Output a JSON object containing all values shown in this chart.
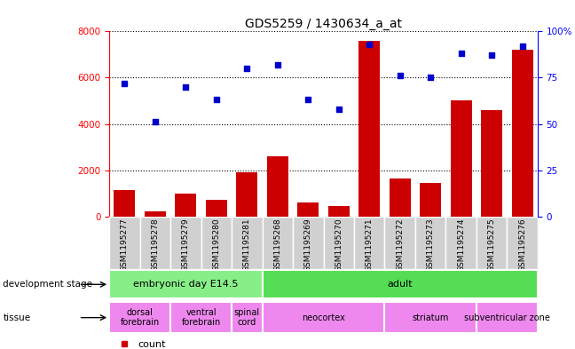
{
  "title": "GDS5259 / 1430634_a_at",
  "samples": [
    "GSM1195277",
    "GSM1195278",
    "GSM1195279",
    "GSM1195280",
    "GSM1195281",
    "GSM1195268",
    "GSM1195269",
    "GSM1195270",
    "GSM1195271",
    "GSM1195272",
    "GSM1195273",
    "GSM1195274",
    "GSM1195275",
    "GSM1195276"
  ],
  "counts": [
    1150,
    200,
    1000,
    700,
    1900,
    2600,
    600,
    450,
    7600,
    1650,
    1450,
    5000,
    4600,
    7200
  ],
  "percentiles": [
    72,
    51,
    70,
    63,
    80,
    82,
    63,
    58,
    93,
    76,
    75,
    88,
    87,
    92
  ],
  "bar_color": "#cc0000",
  "dot_color": "#0000cc",
  "ylim_left": [
    0,
    8000
  ],
  "ylim_right": [
    0,
    100
  ],
  "yticks_left": [
    0,
    2000,
    4000,
    6000,
    8000
  ],
  "yticks_right": [
    0,
    25,
    50,
    75,
    100
  ],
  "dev_stage_groups": [
    {
      "label": "embryonic day E14.5",
      "start": 0,
      "end": 5,
      "color": "#88ee88"
    },
    {
      "label": "adult",
      "start": 5,
      "end": 14,
      "color": "#55dd55"
    }
  ],
  "tissue_groups": [
    {
      "label": "dorsal\nforebrain",
      "start": 0,
      "end": 2,
      "color": "#ee88ee"
    },
    {
      "label": "ventral\nforebrain",
      "start": 2,
      "end": 4,
      "color": "#ee88ee"
    },
    {
      "label": "spinal\ncord",
      "start": 4,
      "end": 5,
      "color": "#ee88ee"
    },
    {
      "label": "neocortex",
      "start": 5,
      "end": 9,
      "color": "#ee88ee"
    },
    {
      "label": "striatum",
      "start": 9,
      "end": 12,
      "color": "#ee88ee"
    },
    {
      "label": "subventricular zone",
      "start": 12,
      "end": 14,
      "color": "#ee88ee"
    }
  ],
  "chart_bg": "#ffffff",
  "label_bg": "#d0d0d0"
}
